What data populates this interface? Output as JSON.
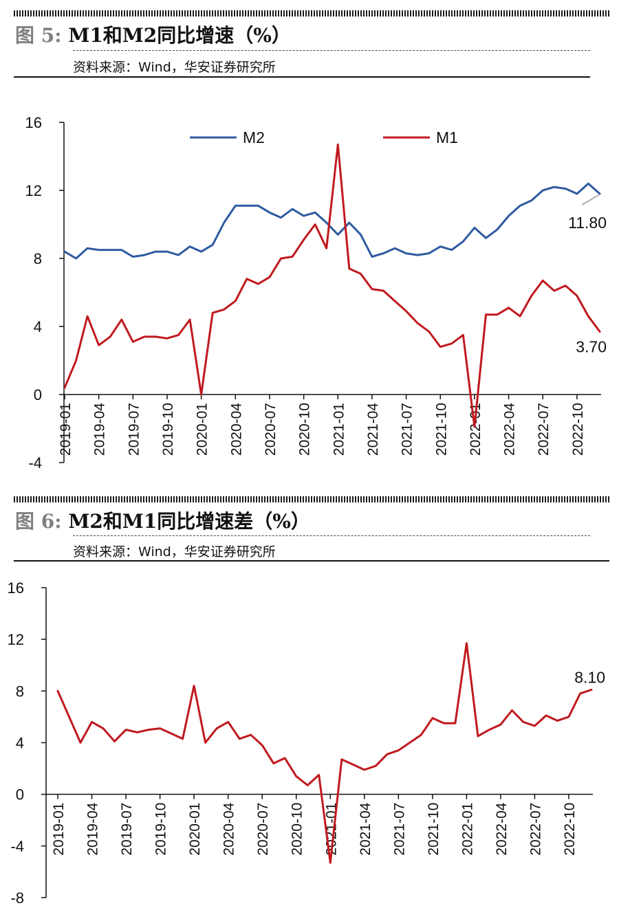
{
  "figure5": {
    "title_no": "图 5:",
    "title_text": "M1和M2同比增速（%）",
    "source": "资料来源：Wind，华安证券研究所"
  },
  "figure6": {
    "title_no": "图 6:",
    "title_text": "M2和M1同比增速差（%）",
    "source": "资料来源：Wind，华安证券研究所"
  },
  "colors": {
    "m2": "#2e5aa0",
    "m1": "#c0191e",
    "diff": "#c0191e",
    "leader": "#b0b0b0"
  },
  "chart_data": [
    {
      "type": "line",
      "x": [
        "2019-01",
        "2019-02",
        "2019-03",
        "2019-04",
        "2019-05",
        "2019-06",
        "2019-07",
        "2019-08",
        "2019-09",
        "2019-10",
        "2019-11",
        "2019-12",
        "2020-01",
        "2020-02",
        "2020-03",
        "2020-04",
        "2020-05",
        "2020-06",
        "2020-07",
        "2020-08",
        "2020-09",
        "2020-10",
        "2020-11",
        "2020-12",
        "2021-01",
        "2021-02",
        "2021-03",
        "2021-04",
        "2021-05",
        "2021-06",
        "2021-07",
        "2021-08",
        "2021-09",
        "2021-10",
        "2021-11",
        "2021-12",
        "2022-01",
        "2022-02",
        "2022-03",
        "2022-04",
        "2022-05",
        "2022-06",
        "2022-07",
        "2022-08",
        "2022-09",
        "2022-10",
        "2022-11",
        "2022-12"
      ],
      "xticks": [
        "2019-01",
        "2019-04",
        "2019-07",
        "2019-10",
        "2020-01",
        "2020-04",
        "2020-07",
        "2020-10",
        "2021-01",
        "2021-04",
        "2021-07",
        "2021-10",
        "2022-01",
        "2022-04",
        "2022-07",
        "2022-10"
      ],
      "ylim": [
        -4,
        16
      ],
      "yticks": [
        "-4",
        "0",
        "4",
        "8",
        "12",
        "16"
      ],
      "series": [
        {
          "name": "M2",
          "values": [
            8.4,
            8.0,
            8.6,
            8.5,
            8.5,
            8.5,
            8.1,
            8.2,
            8.4,
            8.4,
            8.2,
            8.7,
            8.4,
            8.8,
            10.1,
            11.1,
            11.1,
            11.1,
            10.7,
            10.4,
            10.9,
            10.5,
            10.7,
            10.1,
            9.4,
            10.1,
            9.4,
            8.1,
            8.3,
            8.6,
            8.3,
            8.2,
            8.3,
            8.7,
            8.5,
            9.0,
            9.8,
            9.2,
            9.7,
            10.5,
            11.1,
            11.4,
            12.0,
            12.2,
            12.1,
            11.8,
            12.4,
            11.8
          ]
        },
        {
          "name": "M1",
          "values": [
            0.4,
            2.0,
            4.6,
            2.9,
            3.4,
            4.4,
            3.1,
            3.4,
            3.4,
            3.3,
            3.5,
            4.4,
            0.0,
            4.8,
            5.0,
            5.5,
            6.8,
            6.5,
            6.9,
            8.0,
            8.1,
            9.1,
            10.0,
            8.6,
            14.7,
            7.4,
            7.1,
            6.2,
            6.1,
            5.5,
            4.9,
            4.2,
            3.7,
            2.8,
            3.0,
            3.5,
            -1.9,
            4.7,
            4.7,
            5.1,
            4.6,
            5.8,
            6.7,
            6.1,
            6.4,
            5.8,
            4.6,
            3.7
          ]
        }
      ],
      "legend": [
        "M2",
        "M1"
      ],
      "legend_position": "top",
      "annotations": [
        "11.80",
        "3.70"
      ],
      "grid": false
    },
    {
      "type": "line",
      "x": [
        "2019-01",
        "2019-02",
        "2019-03",
        "2019-04",
        "2019-05",
        "2019-06",
        "2019-07",
        "2019-08",
        "2019-09",
        "2019-10",
        "2019-11",
        "2019-12",
        "2020-01",
        "2020-02",
        "2020-03",
        "2020-04",
        "2020-05",
        "2020-06",
        "2020-07",
        "2020-08",
        "2020-09",
        "2020-10",
        "2020-11",
        "2020-12",
        "2021-01",
        "2021-02",
        "2021-03",
        "2021-04",
        "2021-05",
        "2021-06",
        "2021-07",
        "2021-08",
        "2021-09",
        "2021-10",
        "2021-11",
        "2021-12",
        "2022-01",
        "2022-02",
        "2022-03",
        "2022-04",
        "2022-05",
        "2022-06",
        "2022-07",
        "2022-08",
        "2022-09",
        "2022-10",
        "2022-11",
        "2022-12"
      ],
      "xticks": [
        "2019-01",
        "2019-04",
        "2019-07",
        "2019-10",
        "2020-01",
        "2020-04",
        "2020-07",
        "2020-10",
        "2021-01",
        "2021-04",
        "2021-07",
        "2021-10",
        "2022-01",
        "2022-04",
        "2022-07",
        "2022-10"
      ],
      "ylim": [
        -8,
        16
      ],
      "yticks": [
        "-8",
        "-4",
        "0",
        "4",
        "8",
        "12",
        "16"
      ],
      "series": [
        {
          "values": [
            8.0,
            6.0,
            4.0,
            5.6,
            5.1,
            4.1,
            5.0,
            4.8,
            5.0,
            5.1,
            4.7,
            4.3,
            8.4,
            4.0,
            5.1,
            5.6,
            4.3,
            4.6,
            3.8,
            2.4,
            2.8,
            1.4,
            0.7,
            1.5,
            -5.3,
            2.7,
            2.3,
            1.9,
            2.2,
            3.1,
            3.4,
            4.0,
            4.6,
            5.9,
            5.5,
            5.5,
            11.7,
            4.5,
            5.0,
            5.4,
            6.5,
            5.6,
            5.3,
            6.1,
            5.7,
            6.0,
            7.8,
            8.1
          ]
        }
      ],
      "annotations": [
        "8.10"
      ],
      "grid": false
    }
  ]
}
